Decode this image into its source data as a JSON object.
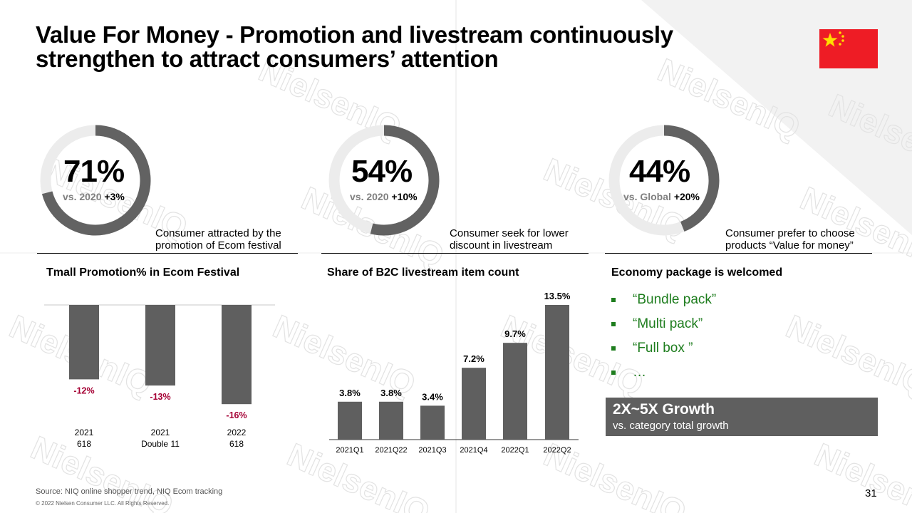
{
  "header": {
    "title_line1": "Value For Money - Promotion and livestream continuously",
    "title_line2": "strengthen to attract consumers’ attention"
  },
  "watermark": {
    "text": "NielsenIQ"
  },
  "flag": {
    "icon": "china-flag-icon",
    "red": "#ee1c25",
    "yellow": "#ffde00"
  },
  "kpis": [
    {
      "value": "71%",
      "sub_gray": "vs. 2020",
      "sub_bold": "+3%",
      "fraction": 0.71,
      "desc_line1": "Consumer attracted by the",
      "desc_line2": "promotion of Ecom festival"
    },
    {
      "value": "54%",
      "sub_gray": "vs. 2020",
      "sub_bold": "+10%",
      "fraction": 0.54,
      "desc_line1": "Consumer seek for  lower",
      "desc_line2": "discount in livestream"
    },
    {
      "value": "44%",
      "sub_gray": "vs. Global",
      "sub_bold": "+20%",
      "fraction": 0.44,
      "desc_line1": "Consumer prefer to choose",
      "desc_line2": "products “Value for money”"
    }
  ],
  "colors": {
    "ring_fill": "#626262",
    "ring_track": "#ececec",
    "bar": "#5f5f5f",
    "negative_label": "#a50034",
    "bullet_green": "#1e7d1e",
    "growth_box": "#5f5f5f"
  },
  "sections": {
    "left_title": "Tmall Promotion% in Ecom Festival",
    "middle_title": "Share of B2C livestream item count",
    "right_title": "Economy package is welcomed"
  },
  "chart_data": [
    {
      "type": "bar",
      "title": "Tmall Promotion% in Ecom Festival",
      "categories": [
        [
          "2021",
          "618"
        ],
        [
          "2021",
          "Double 11"
        ],
        [
          "2022",
          "618"
        ]
      ],
      "values": [
        -12,
        -13,
        -16
      ],
      "labels": [
        "-12%",
        "-13%",
        "-16%"
      ],
      "ylim": [
        -16,
        0
      ]
    },
    {
      "type": "bar",
      "title": "Share of B2C livestream item count",
      "categories": [
        "2021Q1",
        "2021Q22",
        "2021Q3",
        "2021Q4",
        "2022Q1",
        "2022Q2"
      ],
      "values": [
        3.8,
        3.8,
        3.4,
        7.2,
        9.7,
        13.5
      ],
      "labels": [
        "3.8%",
        "3.8%",
        "3.4%",
        "7.2%",
        "9.7%",
        "13.5%"
      ],
      "ylim": [
        0,
        13.5
      ]
    }
  ],
  "economy": {
    "bullets": [
      "“Bundle pack”",
      "“Multi pack”",
      "“Full box ”",
      "…"
    ],
    "growth_big": "2X~5X Growth",
    "growth_small": "vs. category total growth"
  },
  "footer": {
    "source": "Source: NIQ online shopper trend, NIQ Ecom tracking",
    "copyright": "© 2022 Nielsen Consumer LLC. All Rights Reserved.",
    "page_number": "31"
  }
}
